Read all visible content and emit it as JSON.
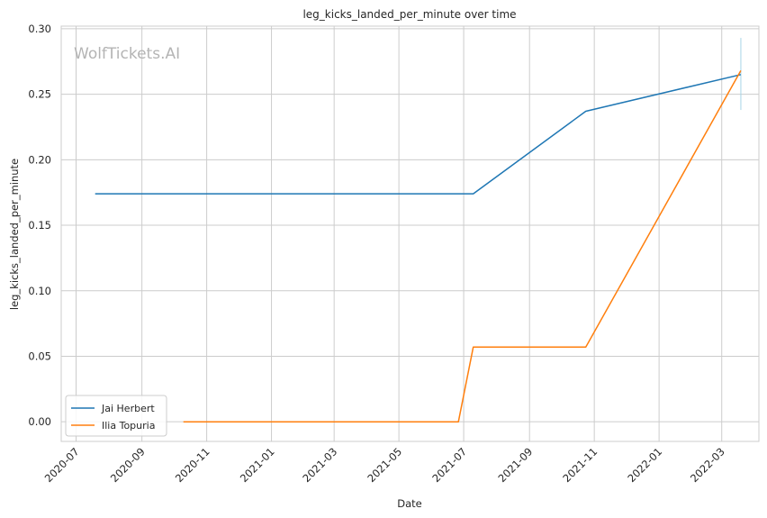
{
  "chart_data": {
    "type": "line",
    "title": "leg_kicks_landed_per_minute over time",
    "xlabel": "Date",
    "ylabel": "leg_kicks_landed_per_minute",
    "watermark": "WolfTickets.AI",
    "x_ticks": [
      "2020-07",
      "2020-09",
      "2020-11",
      "2021-01",
      "2021-03",
      "2021-05",
      "2021-07",
      "2021-09",
      "2021-11",
      "2022-01",
      "2022-03"
    ],
    "y_ticks": [
      "0.00",
      "0.05",
      "0.10",
      "0.15",
      "0.20",
      "0.25",
      "0.30"
    ],
    "xlim": [
      "2020-06-17",
      "2022-04-05"
    ],
    "ylim": [
      -0.015,
      0.302
    ],
    "grid": true,
    "legend_position": "lower-left",
    "series": [
      {
        "name": "Jai Herbert",
        "color": "#1f77b4",
        "x": [
          "2020-07-19",
          "2021-07-10",
          "2021-10-24",
          "2022-03-19"
        ],
        "y": [
          0.174,
          0.174,
          0.237,
          0.265
        ]
      },
      {
        "name": "Ilia Topuria",
        "color": "#ff7f0e",
        "x": [
          "2020-10-10",
          "2021-06-26",
          "2021-07-10",
          "2021-10-24",
          "2022-03-19"
        ],
        "y": [
          0.0,
          0.0,
          0.057,
          0.057,
          0.268
        ]
      }
    ],
    "error_bar": {
      "x": "2022-03-19",
      "y_low": 0.238,
      "y_high": 0.293,
      "color": "#a6d4e6"
    }
  }
}
